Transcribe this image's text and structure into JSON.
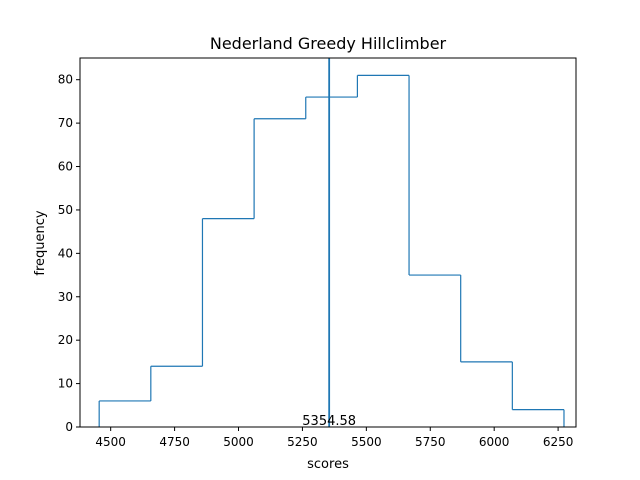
{
  "chart_data": {
    "type": "histogram",
    "title": "Nederland Greedy Hillclimber",
    "xlabel": "scores",
    "ylabel": "frequency",
    "xlim": [
      4380,
      6320
    ],
    "ylim": [
      0,
      85
    ],
    "x_ticks": [
      4500,
      4750,
      5000,
      5250,
      5500,
      5750,
      6000,
      6250
    ],
    "y_ticks": [
      0,
      10,
      20,
      30,
      40,
      50,
      60,
      70,
      80
    ],
    "bin_edges": [
      4455,
      4657,
      4859,
      5061,
      5263,
      5465,
      5667,
      5869,
      6071,
      6273
    ],
    "counts": [
      6,
      14,
      48,
      71,
      76,
      81,
      35,
      15,
      4
    ],
    "mean_line": {
      "value": 5354.58,
      "label": "5354.58"
    },
    "histtype": "step",
    "color": "#1f77b4",
    "grid": false
  }
}
